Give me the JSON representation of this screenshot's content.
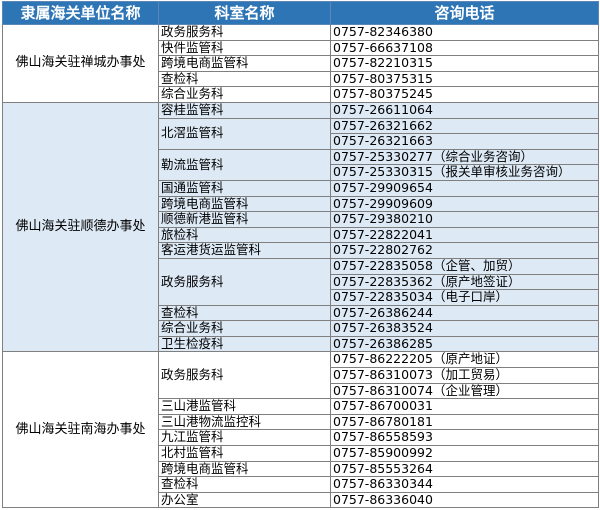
{
  "header": {
    "unit": "隶属海关单位名称",
    "section": "科室名称",
    "phone": "咨询电话"
  },
  "colors": {
    "header_bg": "#2e75b6",
    "alt_row_bg": "#dde9f5"
  },
  "groups": [
    {
      "unit": "佛山海关驻禅城办事处",
      "sections": [
        {
          "name": "政务服务科",
          "phones": [
            "0757-82346380"
          ]
        },
        {
          "name": "快件监管科",
          "phones": [
            "0757-66637108"
          ]
        },
        {
          "name": "跨境电商监管科",
          "phones": [
            "0757-82210315"
          ]
        },
        {
          "name": "查检科",
          "phones": [
            "0757-80375315"
          ]
        },
        {
          "name": "综合业务科",
          "phones": [
            "0757-80375245"
          ]
        }
      ]
    },
    {
      "unit": "佛山海关驻顺德办事处",
      "sections": [
        {
          "name": "容桂监管科",
          "phones": [
            "0757-26611064"
          ]
        },
        {
          "name": "北滘监管科",
          "phones": [
            "0757-26321662",
            "0757-26321663"
          ]
        },
        {
          "name": "勒流监管科",
          "phones": [
            "0757-25330277（综合业务咨询）",
            "0757-25330315（报关单审核业务咨询）"
          ]
        },
        {
          "name": "国通监管科",
          "phones": [
            "0757-29909654"
          ]
        },
        {
          "name": "跨境电商监管科",
          "phones": [
            "0757-29909609"
          ]
        },
        {
          "name": "顺德新港监管科",
          "phones": [
            "0757-29380210"
          ]
        },
        {
          "name": "旅检科",
          "phones": [
            "0757-22822041"
          ]
        },
        {
          "name": "客运港货运监管科",
          "phones": [
            "0757-22802762"
          ]
        },
        {
          "name": "政务服务科",
          "phones": [
            "0757-22835058（企管、加贸）",
            "0757-22835362（原产地签证）",
            "0757-22835034（电子口岸）"
          ]
        },
        {
          "name": "查检科",
          "phones": [
            "0757-26386244"
          ]
        },
        {
          "name": "综合业务科",
          "phones": [
            "0757-26383524"
          ]
        },
        {
          "name": "卫生检疫科",
          "phones": [
            "0757-26386285"
          ]
        }
      ]
    },
    {
      "unit": "佛山海关驻南海办事处",
      "sections": [
        {
          "name": "政务服务科",
          "phones": [
            "0757-86222205（原产地证）",
            "0757-86310073（加工贸易）",
            "0757-86310074（企业管理）"
          ]
        },
        {
          "name": "三山港监管科",
          "phones": [
            "0757-86700031"
          ]
        },
        {
          "name": "三山港物流监控科",
          "phones": [
            "0757-86780181"
          ]
        },
        {
          "name": "九江监管科",
          "phones": [
            "0757-86558593"
          ]
        },
        {
          "name": "北村监管科",
          "phones": [
            "0757-85900992"
          ]
        },
        {
          "name": "跨境电商监管科",
          "phones": [
            "0757-85553264"
          ]
        },
        {
          "name": "查检科",
          "phones": [
            "0757-86330344"
          ]
        },
        {
          "name": "办公室",
          "phones": [
            "0757-86336040"
          ]
        }
      ]
    }
  ]
}
